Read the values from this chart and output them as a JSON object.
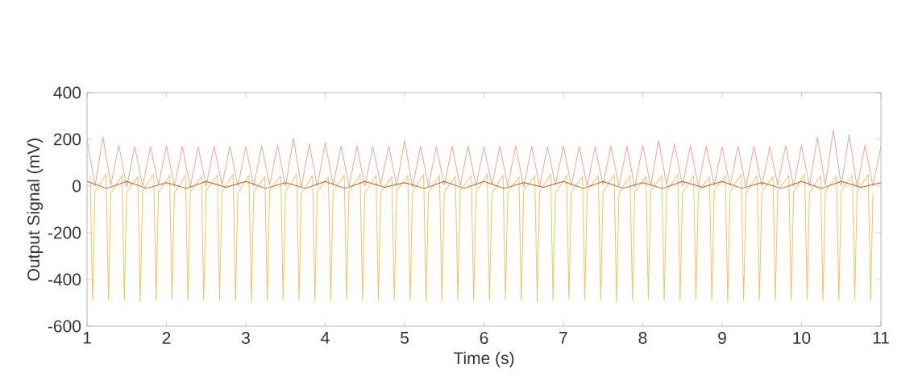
{
  "chart_data": {
    "type": "line",
    "xlabel": "Time (s)",
    "ylabel": "Output Signal (mV)",
    "xlim": [
      1,
      11
    ],
    "ylim": [
      -600,
      400
    ],
    "xticks": [
      1,
      2,
      3,
      4,
      5,
      6,
      7,
      8,
      9,
      10,
      11
    ],
    "yticks": [
      -600,
      -400,
      -200,
      0,
      200,
      400
    ],
    "series": [
      {
        "color": "#eea78f",
        "x": [
          1.0,
          1.1,
          1.2,
          1.3,
          1.4,
          1.5,
          1.6,
          1.7,
          1.8,
          1.9,
          2.0,
          2.1,
          2.2,
          2.3,
          2.4,
          2.5,
          2.6,
          2.7,
          2.8,
          2.9,
          3.0,
          3.1,
          3.2,
          3.3,
          3.4,
          3.5,
          3.6,
          3.7,
          3.8,
          3.9,
          4.0,
          4.1,
          4.2,
          4.3,
          4.4,
          4.5,
          4.6,
          4.7,
          4.8,
          4.9,
          5.0,
          5.1,
          5.2,
          5.3,
          5.4,
          5.5,
          5.6,
          5.7,
          5.8,
          5.9,
          6.0,
          6.1,
          6.2,
          6.3,
          6.4,
          6.5,
          6.6,
          6.7,
          6.8,
          6.9,
          7.0,
          7.1,
          7.2,
          7.3,
          7.4,
          7.5,
          7.6,
          7.7,
          7.8,
          7.9,
          8.0,
          8.1,
          8.2,
          8.3,
          8.4,
          8.5,
          8.6,
          8.7,
          8.8,
          8.9,
          9.0,
          9.1,
          9.2,
          9.3,
          9.4,
          9.5,
          9.6,
          9.7,
          9.8,
          9.9,
          10.0,
          10.1,
          10.2,
          10.3,
          10.4,
          10.5,
          10.6,
          10.7,
          10.8,
          10.9,
          11.0
        ],
        "values": [
          200,
          0,
          210,
          5,
          175,
          -5,
          170,
          0,
          168,
          5,
          172,
          0,
          170,
          -5,
          168,
          0,
          172,
          5,
          170,
          0,
          168,
          0,
          172,
          5,
          175,
          0,
          205,
          -5,
          180,
          0,
          185,
          5,
          172,
          0,
          170,
          0,
          168,
          5,
          172,
          0,
          195,
          -5,
          170,
          0,
          168,
          5,
          170,
          0,
          172,
          0,
          168,
          5,
          170,
          0,
          172,
          -5,
          170,
          0,
          168,
          5,
          172,
          0,
          170,
          0,
          168,
          5,
          172,
          0,
          170,
          -5,
          175,
          0,
          195,
          5,
          180,
          0,
          172,
          0,
          170,
          5,
          168,
          0,
          172,
          -5,
          170,
          0,
          168,
          5,
          172,
          0,
          175,
          0,
          210,
          5,
          240,
          0,
          220,
          -5,
          175,
          0,
          170
        ]
      },
      {
        "color": "#f2c45a",
        "x": [
          1.04,
          1.07,
          1.1,
          1.24,
          1.27,
          1.3,
          1.44,
          1.47,
          1.5,
          1.64,
          1.67,
          1.7,
          1.84,
          1.87,
          1.9,
          2.04,
          2.07,
          2.1,
          2.24,
          2.27,
          2.3,
          2.44,
          2.47,
          2.5,
          2.64,
          2.67,
          2.7,
          2.84,
          2.87,
          2.9,
          3.04,
          3.07,
          3.1,
          3.24,
          3.27,
          3.3,
          3.44,
          3.47,
          3.5,
          3.64,
          3.67,
          3.7,
          3.84,
          3.87,
          3.9,
          4.04,
          4.07,
          4.1,
          4.24,
          4.27,
          4.3,
          4.44,
          4.47,
          4.5,
          4.64,
          4.67,
          4.7,
          4.84,
          4.87,
          4.9,
          5.04,
          5.07,
          5.1,
          5.24,
          5.27,
          5.3,
          5.44,
          5.47,
          5.5,
          5.64,
          5.67,
          5.7,
          5.84,
          5.87,
          5.9,
          6.04,
          6.07,
          6.1,
          6.24,
          6.27,
          6.3,
          6.44,
          6.47,
          6.5,
          6.64,
          6.67,
          6.7,
          6.84,
          6.87,
          6.9,
          7.04,
          7.07,
          7.1,
          7.24,
          7.27,
          7.3,
          7.44,
          7.47,
          7.5,
          7.64,
          7.67,
          7.7,
          7.84,
          7.87,
          7.9,
          8.04,
          8.07,
          8.1,
          8.24,
          8.27,
          8.3,
          8.44,
          8.47,
          8.5,
          8.64,
          8.67,
          8.7,
          8.84,
          8.87,
          8.9,
          9.04,
          9.07,
          9.1,
          9.24,
          9.27,
          9.3,
          9.44,
          9.47,
          9.5,
          9.64,
          9.67,
          9.7,
          9.84,
          9.87,
          9.9,
          10.04,
          10.07,
          10.1,
          10.24,
          10.27,
          10.3,
          10.44,
          10.47,
          10.5,
          10.64,
          10.67,
          10.7,
          10.84,
          10.87,
          10.9
        ],
        "values": [
          45,
          -490,
          -25,
          50,
          -485,
          -30,
          45,
          -490,
          -25,
          40,
          -495,
          -20,
          50,
          -490,
          -25,
          45,
          -485,
          -30,
          45,
          -490,
          -25,
          40,
          -490,
          -20,
          45,
          -485,
          -25,
          50,
          -490,
          -30,
          45,
          -500,
          -25,
          40,
          -490,
          -20,
          45,
          -485,
          -25,
          50,
          -490,
          -30,
          45,
          -495,
          -25,
          40,
          -490,
          -20,
          45,
          -485,
          -25,
          50,
          -490,
          -30,
          45,
          -490,
          -25,
          40,
          -485,
          -20,
          45,
          -490,
          -25,
          50,
          -495,
          -30,
          45,
          -490,
          -25,
          40,
          -485,
          -20,
          45,
          -490,
          -25,
          50,
          -490,
          -30,
          45,
          -485,
          -25,
          40,
          -490,
          -20,
          45,
          -495,
          -25,
          50,
          -490,
          -30,
          45,
          -485,
          -25,
          40,
          -490,
          -20,
          45,
          -490,
          -25,
          50,
          -500,
          -30,
          45,
          -490,
          -25,
          40,
          -485,
          -20,
          45,
          -490,
          -25,
          50,
          -490,
          -30,
          45,
          -485,
          -25,
          40,
          -490,
          -20,
          45,
          -495,
          -25,
          50,
          -490,
          -30,
          45,
          -485,
          -25,
          40,
          -490,
          -20,
          45,
          -490,
          -25,
          50,
          -485,
          -30,
          45,
          -490,
          -25,
          40,
          -490,
          -20,
          45,
          -485,
          -25,
          50,
          -490,
          -30
        ]
      },
      {
        "color": "#d95319",
        "x": [
          1.0,
          1.25,
          1.5,
          1.75,
          2.0,
          2.25,
          2.5,
          2.75,
          3.0,
          3.25,
          3.5,
          3.75,
          4.0,
          4.25,
          4.5,
          4.75,
          5.0,
          5.25,
          5.5,
          5.75,
          6.0,
          6.25,
          6.5,
          6.75,
          7.0,
          7.25,
          7.5,
          7.75,
          8.0,
          8.25,
          8.5,
          8.75,
          9.0,
          9.25,
          9.5,
          9.75,
          10.0,
          10.25,
          10.5,
          10.75,
          11.0
        ],
        "values": [
          20,
          -10,
          20,
          -10,
          15,
          -10,
          20,
          -5,
          20,
          -10,
          15,
          -10,
          20,
          -10,
          20,
          -5,
          15,
          -10,
          20,
          -10,
          20,
          -10,
          15,
          -5,
          20,
          -10,
          20,
          -10,
          15,
          -10,
          20,
          -5,
          20,
          -10,
          15,
          -10,
          20,
          -10,
          20,
          -5,
          15
        ]
      }
    ]
  }
}
